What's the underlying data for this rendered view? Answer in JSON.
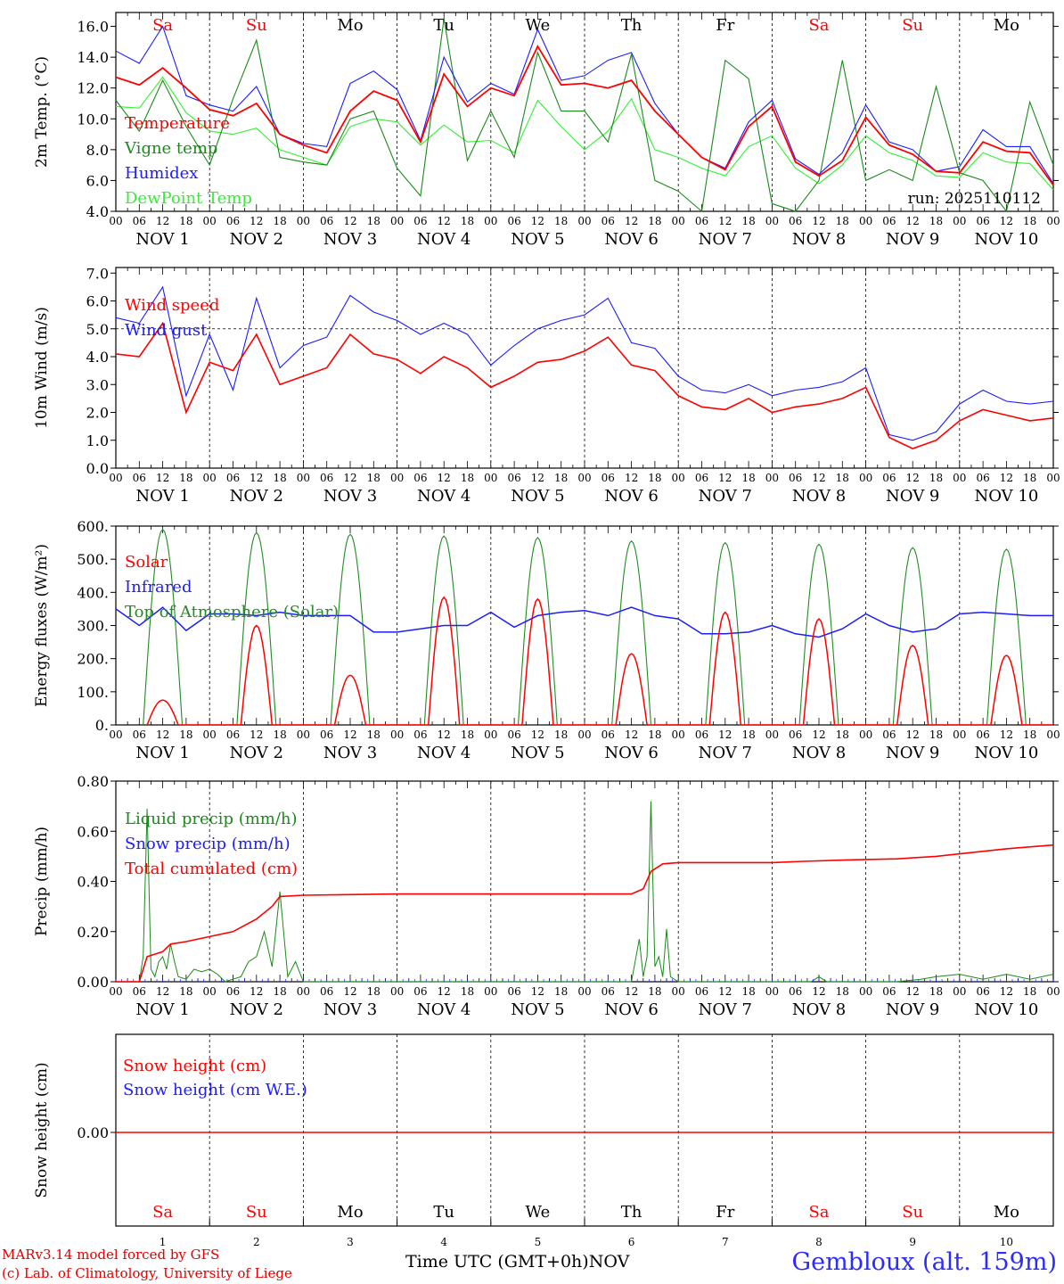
{
  "colors": {
    "red": "#ff0000",
    "green": "#1a8a1a",
    "blue": "#1c1cff",
    "lightgreen": "#33ee33",
    "darkgreen": "#228b22",
    "weekend": "#ff0000",
    "station": "#2b2bff"
  },
  "chart_data": [
    {
      "id": "temp",
      "type": "line",
      "ylabel": "2m Temp. (°C)",
      "ylim": [
        4.0,
        16.9
      ],
      "yticks": [
        "4.0",
        "6.0",
        "8.0",
        "10.0",
        "12.0",
        "14.0",
        "16.0"
      ],
      "ytick_values": [
        4,
        6,
        8,
        10,
        12,
        14,
        16
      ],
      "day_labels": [
        "Sa",
        "Su",
        "Mo",
        "Tu",
        "We",
        "Th",
        "Fr",
        "Sa",
        "Su",
        "Mo"
      ],
      "weekend_days": [
        0,
        1,
        7,
        8
      ],
      "annotation": "run: 2025110112",
      "x_hours": [
        0,
        6,
        12,
        18,
        24,
        30,
        36,
        42,
        48,
        54,
        60,
        66,
        72,
        78,
        84,
        90,
        96,
        102,
        108,
        114,
        120,
        126,
        132,
        138,
        144,
        150,
        156,
        162,
        168,
        174,
        180,
        186,
        192,
        198,
        204,
        210,
        216,
        222,
        228,
        234,
        240
      ],
      "series": [
        {
          "name": "Temperature",
          "color": "red",
          "values": [
            12.7,
            12.2,
            13.3,
            12.0,
            10.6,
            10.2,
            11.0,
            9.0,
            8.3,
            7.8,
            10.5,
            11.8,
            11.2,
            8.5,
            12.9,
            10.8,
            12.0,
            11.5,
            14.7,
            12.2,
            12.3,
            12.0,
            12.5,
            10.5,
            9.0,
            7.5,
            6.7,
            9.5,
            10.8,
            7.2,
            6.3,
            7.3,
            10.1,
            8.3,
            7.7,
            6.6,
            6.5,
            8.5,
            7.9,
            7.8,
            5.7
          ]
        },
        {
          "name": "Vigne temp",
          "color": "green",
          "values": [
            11.2,
            9.2,
            12.5,
            9.5,
            7.0,
            11.3,
            15.1,
            7.5,
            7.2,
            7.0,
            10.0,
            10.5,
            6.8,
            5.0,
            16.5,
            7.3,
            10.5,
            7.5,
            14.3,
            10.5,
            10.5,
            8.5,
            14.2,
            6.0,
            5.3,
            4.0,
            13.8,
            12.6,
            4.5,
            4.0,
            6.0,
            13.8,
            6.0,
            6.7,
            6.0,
            12.1,
            6.5,
            6.0,
            4.0,
            11.1,
            7.0
          ]
        },
        {
          "name": "Humidex",
          "color": "blue",
          "values": [
            14.4,
            13.6,
            16.0,
            11.5,
            10.9,
            10.5,
            12.1,
            9.0,
            8.4,
            8.2,
            12.3,
            13.1,
            11.9,
            8.6,
            14.0,
            11.1,
            12.3,
            11.6,
            15.8,
            12.5,
            12.8,
            13.8,
            14.3,
            11.0,
            9.0,
            7.5,
            6.8,
            9.8,
            11.2,
            7.4,
            6.4,
            7.8,
            10.9,
            8.5,
            8.0,
            6.6,
            6.9,
            9.3,
            8.2,
            8.2,
            5.8
          ]
        },
        {
          "name": "DewPoint Temp",
          "color": "lightgreen",
          "values": [
            10.8,
            10.7,
            12.7,
            10.4,
            9.2,
            9.0,
            9.4,
            8.0,
            7.5,
            7.0,
            9.5,
            10.0,
            9.8,
            8.3,
            9.6,
            8.5,
            8.6,
            7.8,
            11.2,
            9.5,
            8.0,
            9.2,
            11.3,
            8.0,
            7.5,
            6.8,
            6.3,
            8.2,
            8.9,
            6.8,
            5.8,
            7.0,
            8.9,
            7.8,
            7.3,
            6.3,
            6.2,
            7.8,
            7.2,
            7.1,
            5.4
          ]
        }
      ]
    },
    {
      "id": "wind",
      "type": "line",
      "ylabel": "10m Wind (m/s)",
      "ylim": [
        0.0,
        7.2
      ],
      "yticks": [
        "0.0",
        "1.0",
        "2.0",
        "3.0",
        "4.0",
        "5.0",
        "6.0",
        "7.0"
      ],
      "ytick_values": [
        0,
        1,
        2,
        3,
        4,
        5,
        6,
        7
      ],
      "ref_line": 5.0,
      "x_hours": [
        0,
        6,
        12,
        18,
        24,
        30,
        36,
        42,
        48,
        54,
        60,
        66,
        72,
        78,
        84,
        90,
        96,
        102,
        108,
        114,
        120,
        126,
        132,
        138,
        144,
        150,
        156,
        162,
        168,
        174,
        180,
        186,
        192,
        198,
        204,
        210,
        216,
        222,
        228,
        234,
        240
      ],
      "series": [
        {
          "name": "Wind speed",
          "color": "red",
          "values": [
            4.1,
            4.0,
            5.2,
            2.0,
            3.8,
            3.5,
            4.8,
            3.0,
            3.3,
            3.6,
            4.8,
            4.1,
            3.9,
            3.4,
            4.0,
            3.6,
            2.9,
            3.3,
            3.8,
            3.9,
            4.2,
            4.7,
            3.7,
            3.5,
            2.6,
            2.2,
            2.1,
            2.5,
            2.0,
            2.2,
            2.3,
            2.5,
            2.9,
            1.1,
            0.7,
            1.0,
            1.7,
            2.1,
            1.9,
            1.7,
            1.8
          ]
        },
        {
          "name": "Wind gust",
          "color": "blue",
          "values": [
            5.4,
            5.2,
            6.5,
            2.6,
            4.8,
            2.8,
            6.1,
            3.6,
            4.4,
            4.7,
            6.2,
            5.6,
            5.3,
            4.8,
            5.2,
            4.8,
            3.7,
            4.4,
            5.0,
            5.3,
            5.5,
            6.1,
            4.5,
            4.3,
            3.3,
            2.8,
            2.7,
            3.0,
            2.6,
            2.8,
            2.9,
            3.1,
            3.6,
            1.2,
            1.0,
            1.3,
            2.3,
            2.8,
            2.4,
            2.3,
            2.4
          ]
        }
      ]
    },
    {
      "id": "energy",
      "type": "line",
      "ylabel": "Energy fluxes (W/m²)",
      "ylim": [
        0,
        600
      ],
      "yticks": [
        "0.",
        "100.",
        "200.",
        "300.",
        "400.",
        "500.",
        "600."
      ],
      "ytick_values": [
        0,
        100,
        200,
        300,
        400,
        500,
        600
      ],
      "solar_peaks": [
        75,
        300,
        150,
        385,
        380,
        215,
        340,
        320,
        240,
        210
      ],
      "toa_peaks": [
        590,
        580,
        575,
        570,
        565,
        555,
        550,
        545,
        535,
        530
      ],
      "series": [
        {
          "name": "Solar",
          "color": "red"
        },
        {
          "name": "Infrared",
          "color": "blue",
          "values": [
            350,
            300,
            355,
            285,
            335,
            335,
            330,
            340,
            330,
            330,
            330,
            280,
            280,
            290,
            300,
            300,
            340,
            295,
            330,
            340,
            345,
            330,
            355,
            330,
            320,
            275,
            275,
            280,
            300,
            275,
            265,
            290,
            335,
            300,
            280,
            290,
            335,
            340,
            335,
            330,
            330
          ]
        },
        {
          "name": "Top of Atmosphere (Solar)",
          "color": "darkgreen"
        }
      ]
    },
    {
      "id": "precip",
      "type": "line",
      "ylabel": "Precip (mm/h)",
      "ylim": [
        0.0,
        0.8
      ],
      "yticks": [
        "0.00",
        "0.20",
        "0.40",
        "0.60",
        "0.80"
      ],
      "ytick_values": [
        0,
        0.2,
        0.4,
        0.6,
        0.8
      ],
      "series": [
        {
          "name": "Liquid precip (mm/h)",
          "color": "green",
          "points": [
            [
              0,
              0
            ],
            [
              6,
              0
            ],
            [
              7,
              0.1
            ],
            [
              8,
              0.69
            ],
            [
              9,
              0.05
            ],
            [
              10,
              0.02
            ],
            [
              11,
              0.08
            ],
            [
              12,
              0.1
            ],
            [
              13,
              0.05
            ],
            [
              14,
              0.15
            ],
            [
              15,
              0.08
            ],
            [
              16,
              0.02
            ],
            [
              18,
              0.01
            ],
            [
              20,
              0.05
            ],
            [
              22,
              0.04
            ],
            [
              24,
              0.05
            ],
            [
              26,
              0.03
            ],
            [
              28,
              0.0
            ],
            [
              30,
              0.01
            ],
            [
              32,
              0.02
            ],
            [
              34,
              0.08
            ],
            [
              36,
              0.1
            ],
            [
              38,
              0.2
            ],
            [
              40,
              0.06
            ],
            [
              42,
              0.36
            ],
            [
              44,
              0.02
            ],
            [
              46,
              0.08
            ],
            [
              48,
              0.0
            ],
            [
              60,
              0.0
            ],
            [
              84,
              0.0
            ],
            [
              132,
              0.0
            ],
            [
              134,
              0.17
            ],
            [
              135,
              0.02
            ],
            [
              136,
              0.1
            ],
            [
              137,
              0.72
            ],
            [
              138,
              0.06
            ],
            [
              139,
              0.1
            ],
            [
              140,
              0.02
            ],
            [
              141,
              0.21
            ],
            [
              142,
              0.02
            ],
            [
              144,
              0.0
            ],
            [
              168,
              0.0
            ],
            [
              178,
              0.0
            ],
            [
              180,
              0.02
            ],
            [
              182,
              0.0
            ],
            [
              192,
              0.0
            ],
            [
              200,
              0.0
            ],
            [
              206,
              0.01
            ],
            [
              210,
              0.02
            ],
            [
              216,
              0.03
            ],
            [
              222,
              0.01
            ],
            [
              228,
              0.03
            ],
            [
              234,
              0.01
            ],
            [
              240,
              0.03
            ]
          ]
        },
        {
          "name": "Snow precip (mm/h)",
          "color": "blue",
          "points": [
            [
              0,
              0
            ],
            [
              240,
              0
            ]
          ]
        },
        {
          "name": "Total cumulated (cm)",
          "color": "red",
          "points": [
            [
              0,
              0
            ],
            [
              6,
              0
            ],
            [
              8,
              0.1
            ],
            [
              12,
              0.12
            ],
            [
              14,
              0.15
            ],
            [
              18,
              0.16
            ],
            [
              24,
              0.18
            ],
            [
              30,
              0.2
            ],
            [
              36,
              0.25
            ],
            [
              40,
              0.3
            ],
            [
              42,
              0.34
            ],
            [
              48,
              0.345
            ],
            [
              72,
              0.35
            ],
            [
              132,
              0.35
            ],
            [
              135,
              0.37
            ],
            [
              137,
              0.44
            ],
            [
              140,
              0.47
            ],
            [
              144,
              0.475
            ],
            [
              168,
              0.475
            ],
            [
              176,
              0.48
            ],
            [
              186,
              0.485
            ],
            [
              200,
              0.49
            ],
            [
              210,
              0.5
            ],
            [
              216,
              0.51
            ],
            [
              228,
              0.53
            ],
            [
              240,
              0.545
            ]
          ]
        }
      ]
    },
    {
      "id": "snow",
      "type": "line",
      "ylabel": "Snow height (cm)",
      "yticks": [
        "0.00"
      ],
      "series": [
        {
          "name": "Snow height (cm)",
          "color": "red"
        },
        {
          "name": "Snow height (cm W.E.)",
          "color": "blue"
        }
      ]
    }
  ],
  "x_axis": {
    "hour_ticks": [
      "00",
      "06",
      "12",
      "18"
    ],
    "end_tick": "00",
    "date_labels": [
      "NOV  1",
      "NOV  2",
      "NOV  3",
      "NOV  4",
      "NOV  5",
      "NOV  6",
      "NOV  7",
      "NOV  8",
      "NOV  9",
      "NOV 10"
    ],
    "day_numbers": [
      "1",
      "2",
      "3",
      "4",
      "5",
      "6",
      "7",
      "8",
      "9",
      "10"
    ],
    "xlabel": "Time UTC (GMT+0h)",
    "month": "NOV"
  },
  "footer": {
    "line1": "MARv3.14 model forced by GFS",
    "line2": "(c) Lab. of Climatology, University of Liege",
    "station": "Gembloux (alt. 159m)"
  }
}
